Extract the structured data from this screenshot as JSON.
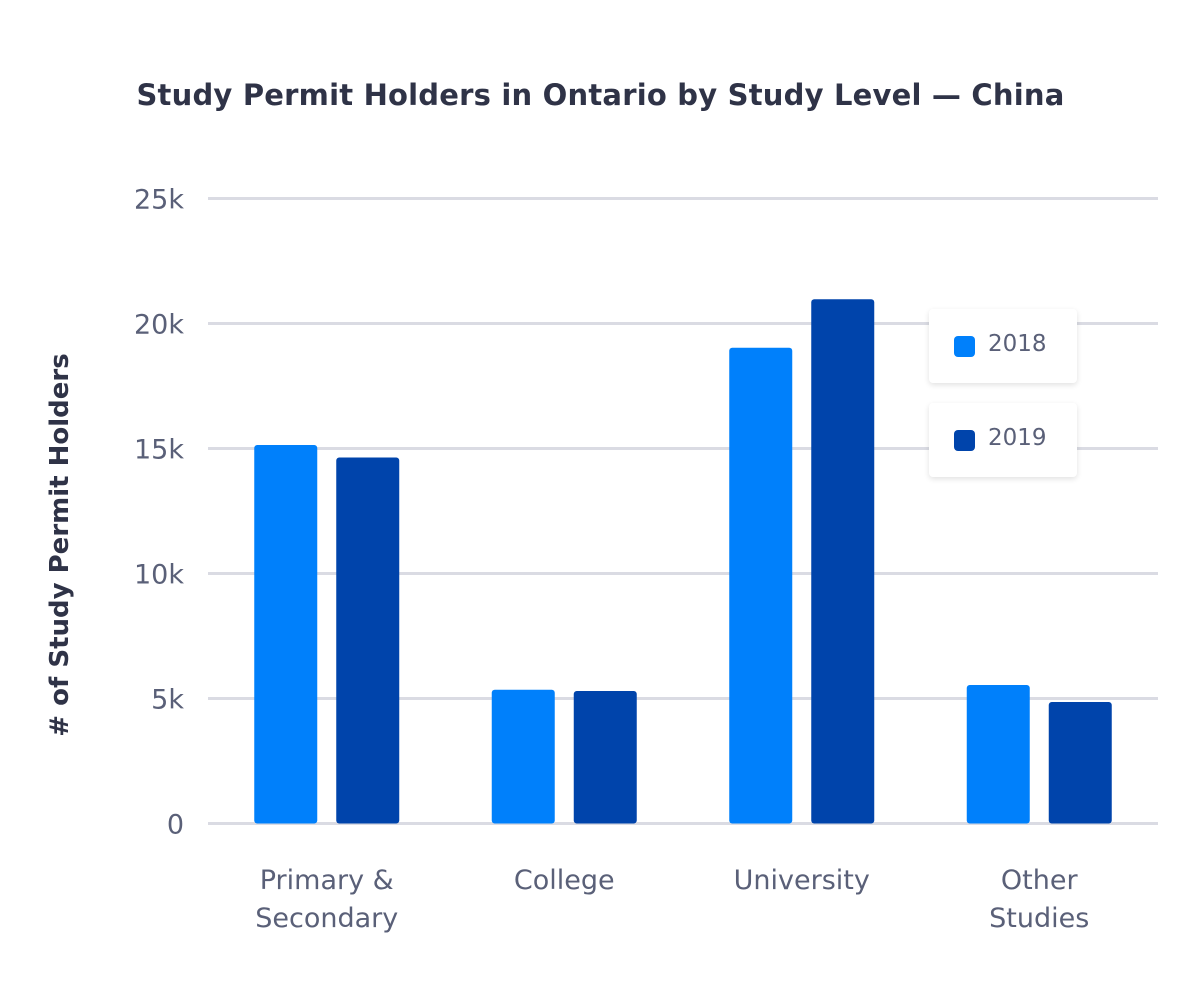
{
  "chart_data": {
    "type": "bar",
    "title": "Study Permit Holders in Ontario by Study Level — China",
    "xlabel": "",
    "ylabel": "# of Study Permit Holders",
    "categories": [
      [
        "Primary &",
        "Secondary"
      ],
      [
        "College"
      ],
      [
        "University"
      ],
      [
        "Other",
        "Studies"
      ]
    ],
    "series": [
      {
        "name": "2018",
        "color": "#0080fb",
        "values": [
          15140,
          5350,
          19030,
          5540
        ]
      },
      {
        "name": "2019",
        "color": "#0044ab",
        "values": [
          14640,
          5300,
          20970,
          4860
        ]
      }
    ],
    "ylim": [
      0,
      25000
    ],
    "yticks": [
      0,
      5000,
      10000,
      15000,
      20000,
      25000
    ],
    "ytick_labels": [
      "0",
      "5k",
      "10k",
      "15k",
      "20k",
      "25k"
    ],
    "grid": true,
    "legend_position": "top-right"
  }
}
